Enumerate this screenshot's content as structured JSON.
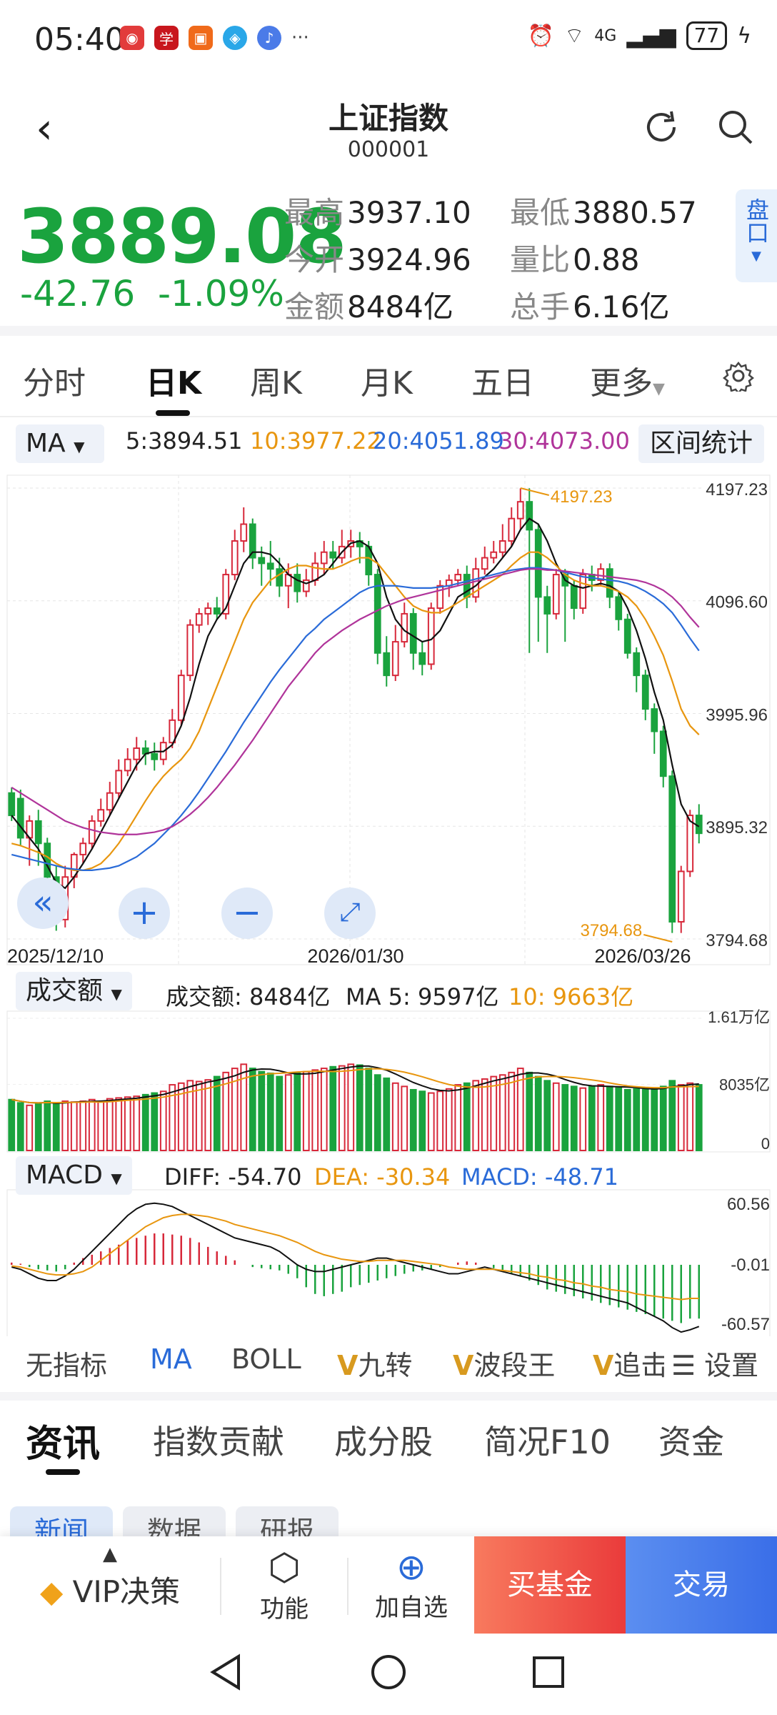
{
  "status": {
    "time": "05:40",
    "battery": "77",
    "network": "4G",
    "notif_apps": [
      "app-icon-1",
      "app-icon-2",
      "app-icon-3",
      "app-icon-4",
      "app-icon-5"
    ],
    "more": "···"
  },
  "header": {
    "title": "上证指数",
    "code": "000001"
  },
  "quote": {
    "price": "3889.08",
    "change": "-42.76",
    "change_pct": "-1.09%",
    "high_label": "最高",
    "high": "3937.10",
    "low_label": "最低",
    "low": "3880.57",
    "open_label": "今开",
    "open": "3924.96",
    "vol_ratio_label": "量比",
    "vol_ratio": "0.88",
    "amount_label": "金额",
    "amount": "8484亿",
    "turnover_label": "总手",
    "turnover": "6.16亿",
    "pankou": "盘口"
  },
  "tabs": [
    "分时",
    "日K",
    "周K",
    "月K",
    "五日",
    "更多"
  ],
  "ma_bar": {
    "selector": "MA",
    "ma5": "5:3894.51",
    "ma10": "10:3977.22",
    "ma20": "20:4051.89",
    "ma30": "30:4073.00",
    "range_stats": "区间统计"
  },
  "kline_axis": {
    "y": [
      "4197.23",
      "4096.60",
      "3995.96",
      "3895.32",
      "3794.68"
    ],
    "x": [
      "2025/12/10",
      "2026/01/30",
      "2026/03/26"
    ],
    "high_mark": "4197.23",
    "low_mark": "3794.68"
  },
  "volume_bar": {
    "selector": "成交额",
    "amount": "成交额: 8484亿",
    "ma5": "MA 5: 9597亿",
    "ma10": "10: 9663亿",
    "y": [
      "1.61万亿",
      "8035亿",
      "0"
    ]
  },
  "macd_bar": {
    "selector": "MACD",
    "diff": "DIFF: -54.70",
    "dea": "DEA: -30.34",
    "macd": "MACD: -48.71",
    "y": [
      "60.56",
      "-0.01",
      "-60.57"
    ]
  },
  "indicators": [
    "无指标",
    "MA",
    "BOLL",
    "九转",
    "波段王",
    "追击",
    "设置"
  ],
  "news_tabs": [
    "资讯",
    "指数贡献",
    "成分股",
    "简况F10",
    "资金"
  ],
  "sub_pills": [
    "新闻",
    "数据",
    "研报"
  ],
  "bottom": {
    "vip": "VIP决策",
    "func": "功能",
    "add": "加自选",
    "buy_fund": "买基金",
    "trade": "交易"
  },
  "colors": {
    "up": "#d7283a",
    "down": "#1aa33e",
    "ma5": "#111111",
    "ma10": "#e8960f",
    "ma20": "#2a6bd8",
    "ma30": "#b0349a"
  },
  "chart_data": {
    "type": "candlestick",
    "ylim": [
      3794.68,
      4197.23
    ],
    "candles": [
      [
        3925,
        3905,
        3930,
        3900
      ],
      [
        3920,
        3885,
        3928,
        3878
      ],
      [
        3885,
        3900,
        3905,
        3860
      ],
      [
        3900,
        3880,
        3910,
        3860
      ],
      [
        3880,
        3850,
        3885,
        3820
      ],
      [
        3850,
        3812,
        3860,
        3802
      ],
      [
        3812,
        3850,
        3860,
        3805
      ],
      [
        3850,
        3870,
        3872,
        3840
      ],
      [
        3870,
        3880,
        3885,
        3862
      ],
      [
        3880,
        3900,
        3905,
        3875
      ],
      [
        3900,
        3910,
        3920,
        3895
      ],
      [
        3910,
        3925,
        3935,
        3905
      ],
      [
        3925,
        3945,
        3955,
        3920
      ],
      [
        3945,
        3955,
        3965,
        3940
      ],
      [
        3955,
        3965,
        3975,
        3945
      ],
      [
        3965,
        3960,
        3972,
        3950
      ],
      [
        3960,
        3955,
        3970,
        3945
      ],
      [
        3955,
        3970,
        3975,
        3950
      ],
      [
        3970,
        3990,
        4000,
        3965
      ],
      [
        3990,
        4030,
        4035,
        3985
      ],
      [
        4030,
        4075,
        4080,
        4025
      ],
      [
        4075,
        4085,
        4090,
        4068
      ],
      [
        4085,
        4090,
        4095,
        4075
      ],
      [
        4090,
        4085,
        4100,
        4080
      ],
      [
        4085,
        4120,
        4125,
        4080
      ],
      [
        4120,
        4150,
        4160,
        4115
      ],
      [
        4150,
        4165,
        4180,
        4140
      ],
      [
        4165,
        4135,
        4170,
        4125
      ],
      [
        4135,
        4130,
        4145,
        4110
      ],
      [
        4130,
        4125,
        4150,
        4110
      ],
      [
        4125,
        4110,
        4135,
        4100
      ],
      [
        4110,
        4120,
        4130,
        4090
      ],
      [
        4120,
        4105,
        4130,
        4095
      ],
      [
        4105,
        4115,
        4125,
        4100
      ],
      [
        4115,
        4130,
        4140,
        4110
      ],
      [
        4130,
        4140,
        4150,
        4120
      ],
      [
        4140,
        4135,
        4150,
        4125
      ],
      [
        4135,
        4145,
        4160,
        4130
      ],
      [
        4145,
        4150,
        4160,
        4135
      ],
      [
        4150,
        4145,
        4158,
        4130
      ],
      [
        4145,
        4120,
        4150,
        4110
      ],
      [
        4120,
        4050,
        4125,
        4040
      ],
      [
        4050,
        4030,
        4065,
        4020
      ],
      [
        4030,
        4060,
        4075,
        4025
      ],
      [
        4060,
        4085,
        4095,
        4055
      ],
      [
        4085,
        4050,
        4090,
        4035
      ],
      [
        4050,
        4040,
        4060,
        4030
      ],
      [
        4040,
        4090,
        4095,
        4035
      ],
      [
        4090,
        4110,
        4115,
        4085
      ],
      [
        4110,
        4115,
        4120,
        4100
      ],
      [
        4115,
        4120,
        4125,
        4110
      ],
      [
        4120,
        4100,
        4128,
        4090
      ],
      [
        4100,
        4125,
        4135,
        4095
      ],
      [
        4125,
        4135,
        4145,
        4120
      ],
      [
        4135,
        4140,
        4150,
        4130
      ],
      [
        4140,
        4150,
        4165,
        4135
      ],
      [
        4150,
        4170,
        4180,
        4145
      ],
      [
        4170,
        4185,
        4197,
        4160
      ],
      [
        4185,
        4160,
        4197,
        4050
      ],
      [
        4160,
        4100,
        4165,
        4060
      ],
      [
        4100,
        4085,
        4110,
        4050
      ],
      [
        4085,
        4120,
        4125,
        4080
      ],
      [
        4120,
        4110,
        4125,
        4060
      ],
      [
        4110,
        4090,
        4115,
        4080
      ],
      [
        4090,
        4120,
        4125,
        4085
      ],
      [
        4120,
        4115,
        4128,
        4105
      ],
      [
        4115,
        4125,
        4130,
        4110
      ],
      [
        4125,
        4100,
        4130,
        4090
      ],
      [
        4100,
        4080,
        4105,
        4070
      ],
      [
        4080,
        4050,
        4085,
        4045
      ],
      [
        4050,
        4030,
        4055,
        4015
      ],
      [
        4030,
        4000,
        4035,
        3990
      ],
      [
        4000,
        3980,
        4005,
        3960
      ],
      [
        3980,
        3940,
        3985,
        3930
      ],
      [
        3940,
        3810,
        3945,
        3800
      ],
      [
        3810,
        3855,
        3860,
        3800
      ],
      [
        3855,
        3905,
        3910,
        3850
      ],
      [
        3905,
        3889,
        3915,
        3880
      ]
    ],
    "ma_lines": {
      "ma5": [
        3905,
        3895,
        3885,
        3875,
        3860,
        3845,
        3840,
        3850,
        3862,
        3875,
        3890,
        3905,
        3920,
        3935,
        3950,
        3960,
        3962,
        3962,
        3968,
        3985,
        4010,
        4040,
        4065,
        4080,
        4090,
        4110,
        4130,
        4140,
        4140,
        4138,
        4130,
        4120,
        4115,
        4112,
        4115,
        4120,
        4130,
        4140,
        4148,
        4150,
        4145,
        4130,
        4100,
        4080,
        4070,
        4065,
        4060,
        4062,
        4070,
        4085,
        4100,
        4105,
        4110,
        4118,
        4125,
        4135,
        4145,
        4160,
        4170,
        4165,
        4150,
        4130,
        4115,
        4110,
        4108,
        4110,
        4112,
        4110,
        4105,
        4090,
        4070,
        4045,
        4015,
        3990,
        3950,
        3915,
        3900,
        3895
      ],
      "ma10": [
        3880,
        3878,
        3875,
        3872,
        3868,
        3862,
        3858,
        3856,
        3856,
        3858,
        3862,
        3870,
        3880,
        3892,
        3905,
        3918,
        3930,
        3940,
        3948,
        3955,
        3965,
        3980,
        4000,
        4020,
        4040,
        4060,
        4080,
        4095,
        4105,
        4115,
        4120,
        4125,
        4128,
        4128,
        4126,
        4125,
        4125,
        4128,
        4132,
        4135,
        4135,
        4130,
        4120,
        4110,
        4100,
        4092,
        4088,
        4086,
        4086,
        4090,
        4095,
        4100,
        4105,
        4110,
        4115,
        4120,
        4128,
        4135,
        4140,
        4140,
        4135,
        4128,
        4120,
        4115,
        4112,
        4110,
        4110,
        4108,
        4105,
        4100,
        4092,
        4080,
        4065,
        4048,
        4025,
        4000,
        3985,
        3977
      ],
      "ma20": [
        3870,
        3868,
        3866,
        3864,
        3862,
        3860,
        3858,
        3857,
        3856,
        3856,
        3857,
        3858,
        3860,
        3864,
        3868,
        3874,
        3880,
        3888,
        3896,
        3905,
        3915,
        3926,
        3938,
        3950,
        3962,
        3975,
        3988,
        4000,
        4012,
        4024,
        4035,
        4045,
        4055,
        4065,
        4072,
        4080,
        4086,
        4092,
        4098,
        4104,
        4108,
        4110,
        4110,
        4110,
        4109,
        4108,
        4108,
        4108,
        4109,
        4110,
        4112,
        4114,
        4116,
        4118,
        4120,
        4122,
        4124,
        4125,
        4126,
        4126,
        4125,
        4124,
        4122,
        4120,
        4118,
        4117,
        4116,
        4115,
        4114,
        4112,
        4109,
        4105,
        4100,
        4094,
        4086,
        4075,
        4063,
        4052
      ],
      "ma30": [
        3930,
        3925,
        3920,
        3915,
        3910,
        3905,
        3900,
        3897,
        3894,
        3892,
        3890,
        3889,
        3888,
        3888,
        3888,
        3889,
        3890,
        3892,
        3895,
        3900,
        3906,
        3913,
        3921,
        3930,
        3940,
        3950,
        3961,
        3972,
        3984,
        3996,
        4008,
        4020,
        4030,
        4040,
        4050,
        4058,
        4064,
        4070,
        4075,
        4080,
        4084,
        4088,
        4092,
        4095,
        4098,
        4100,
        4102,
        4104,
        4106,
        4108,
        4110,
        4112,
        4114,
        4116,
        4118,
        4120,
        4122,
        4124,
        4125,
        4125,
        4124,
        4124,
        4123,
        4122,
        4121,
        4120,
        4119,
        4118,
        4117,
        4116,
        4115,
        4113,
        4110,
        4106,
        4100,
        4092,
        4082,
        4073
      ]
    },
    "volume": [
      0.62,
      0.58,
      0.55,
      0.57,
      0.6,
      0.58,
      0.6,
      0.59,
      0.6,
      0.62,
      0.6,
      0.63,
      0.64,
      0.65,
      0.66,
      0.68,
      0.7,
      0.72,
      0.8,
      0.82,
      0.85,
      0.84,
      0.86,
      0.9,
      0.95,
      1.0,
      1.05,
      1.0,
      0.96,
      0.94,
      0.9,
      0.92,
      0.94,
      0.96,
      0.98,
      1.0,
      1.02,
      1.03,
      1.05,
      1.04,
      1.0,
      0.92,
      0.88,
      0.82,
      0.78,
      0.74,
      0.72,
      0.7,
      0.72,
      0.75,
      0.8,
      0.82,
      0.85,
      0.87,
      0.9,
      0.92,
      0.95,
      1.0,
      0.95,
      0.9,
      0.85,
      0.82,
      0.8,
      0.78,
      0.76,
      0.78,
      0.8,
      0.78,
      0.76,
      0.74,
      0.75,
      0.74,
      0.76,
      0.78,
      0.85,
      0.8,
      0.82,
      0.8
    ],
    "macd_hist": [
      2,
      1,
      -2,
      -4,
      -5,
      -6,
      -4,
      2,
      6,
      9,
      12,
      15,
      18,
      22,
      24,
      26,
      28,
      28,
      27,
      26,
      24,
      20,
      16,
      12,
      8,
      4,
      0,
      -2,
      -3,
      -4,
      -5,
      -8,
      -12,
      -20,
      -26,
      -28,
      -26,
      -24,
      -20,
      -18,
      -16,
      -14,
      -12,
      -10,
      -8,
      -6,
      -5,
      -4,
      -2,
      0,
      2,
      3,
      2,
      0,
      -3,
      -6,
      -8,
      -10,
      -14,
      -18,
      -22,
      -24,
      -26,
      -28,
      -30,
      -32,
      -34,
      -36,
      -38,
      -40,
      -42,
      -44,
      -46,
      -48,
      -50,
      -52,
      -48,
      -48
    ],
    "diff": [
      -2,
      -4,
      -8,
      -12,
      -14,
      -14,
      -10,
      -4,
      4,
      12,
      20,
      28,
      36,
      44,
      50,
      54,
      55,
      54,
      52,
      48,
      44,
      40,
      36,
      32,
      28,
      24,
      22,
      20,
      18,
      16,
      12,
      6,
      0,
      -4,
      -6,
      -6,
      -4,
      -2,
      0,
      2,
      4,
      6,
      6,
      4,
      2,
      0,
      -2,
      -4,
      -6,
      -8,
      -8,
      -6,
      -4,
      -2,
      -4,
      -6,
      -8,
      -10,
      -12,
      -14,
      -16,
      -18,
      -20,
      -22,
      -24,
      -26,
      -28,
      -30,
      -32,
      -34,
      -38,
      -42,
      -46,
      -50,
      -56,
      -60,
      -58,
      -55
    ],
    "dea": [
      -1,
      -2,
      -4,
      -6,
      -8,
      -9,
      -9,
      -8,
      -6,
      -2,
      4,
      10,
      16,
      22,
      28,
      34,
      38,
      42,
      44,
      45,
      45,
      44,
      43,
      41,
      39,
      36,
      34,
      32,
      30,
      28,
      26,
      23,
      20,
      16,
      12,
      9,
      7,
      5,
      4,
      3,
      3,
      4,
      4,
      4,
      4,
      3,
      2,
      1,
      0,
      -2,
      -3,
      -4,
      -4,
      -4,
      -4,
      -5,
      -6,
      -7,
      -8,
      -10,
      -11,
      -13,
      -14,
      -16,
      -17,
      -19,
      -20,
      -22,
      -23,
      -24,
      -26,
      -27,
      -28,
      -29,
      -30,
      -31,
      -30,
      -30
    ]
  }
}
